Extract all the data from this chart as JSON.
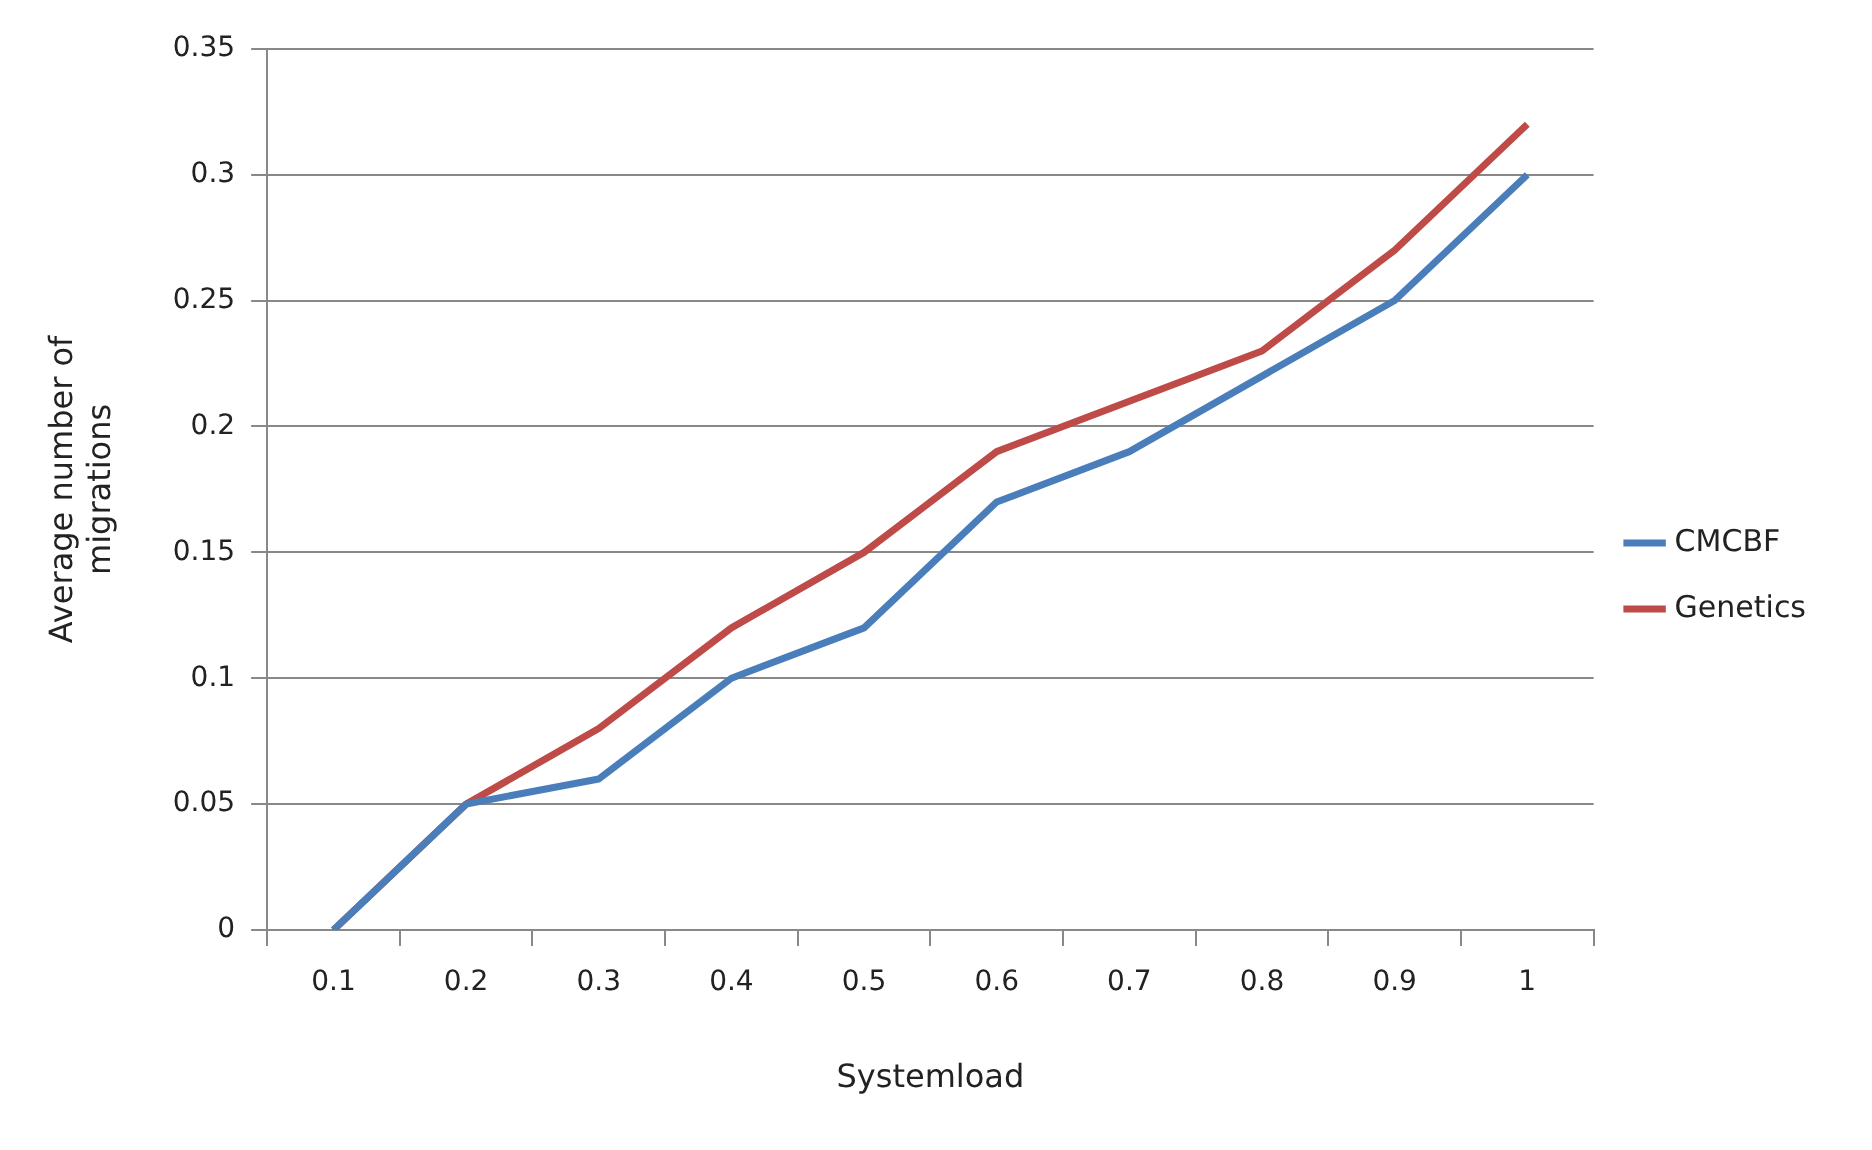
{
  "chart_data": {
    "type": "line",
    "xlabel": "Systemload",
    "ylabel": "Average number of migrations",
    "categories": [
      "0.1",
      "0.2",
      "0.3",
      "0.4",
      "0.5",
      "0.6",
      "0.7",
      "0.8",
      "0.9",
      "1"
    ],
    "series": [
      {
        "name": "CMCBF",
        "color": "#4a7ebb",
        "values": [
          0,
          0.05,
          0.06,
          0.1,
          0.12,
          0.17,
          0.19,
          0.22,
          0.25,
          0.3
        ]
      },
      {
        "name": "Genetics",
        "color": "#be4b48",
        "values": [
          0,
          0.05,
          0.08,
          0.12,
          0.15,
          0.19,
          0.21,
          0.23,
          0.27,
          0.32
        ]
      }
    ],
    "ylim": [
      0,
      0.35
    ],
    "yticks": [
      0,
      0.05,
      0.1,
      0.15,
      0.2,
      0.25,
      0.3,
      0.35
    ],
    "grid": "y",
    "legend": "right",
    "marker": "none",
    "line_style": "solid"
  }
}
